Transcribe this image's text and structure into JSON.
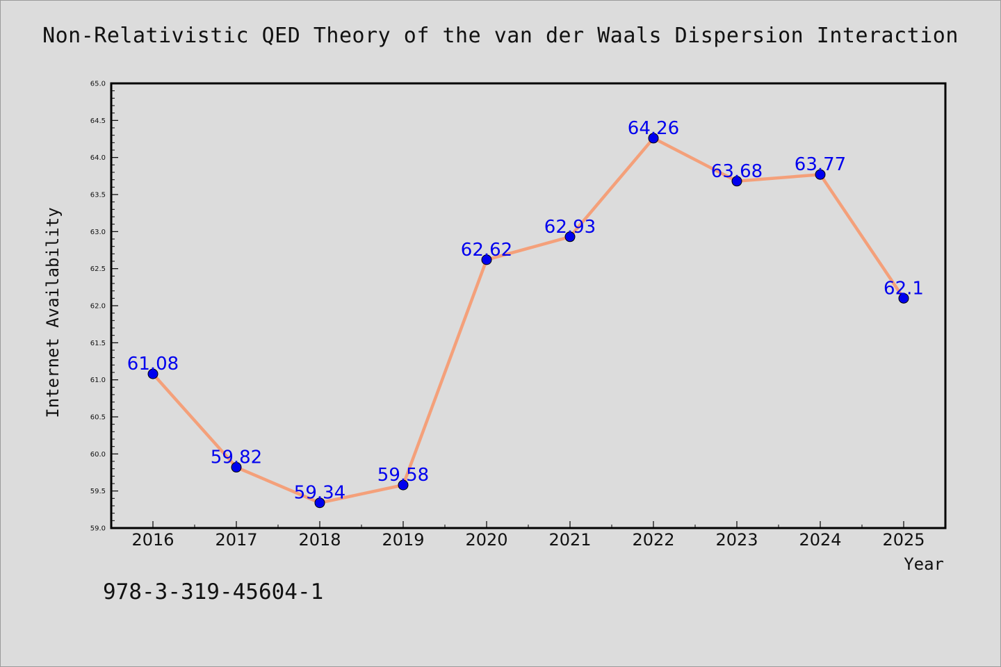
{
  "chart_data": {
    "type": "line",
    "title": "Non-Relativistic QED Theory of the van der Waals Dispersion Interaction",
    "xlabel": "Year",
    "ylabel": "Internet Availability",
    "categories": [
      "2016",
      "2017",
      "2018",
      "2019",
      "2020",
      "2021",
      "2022",
      "2023",
      "2024",
      "2025"
    ],
    "series": [
      {
        "values": [
          61.08,
          59.82,
          59.34,
          59.58,
          62.62,
          62.93,
          64.26,
          63.68,
          63.77,
          62.1
        ],
        "data_labels": [
          "61.08",
          "59.82",
          "59.34",
          "59.58",
          "62.62",
          "62.93",
          "64.26",
          "63.68",
          "63.77",
          "62.1"
        ],
        "line_color": "#f4a07a",
        "marker_color": "#0000ee",
        "label_color": "#0000ee"
      }
    ],
    "ylim": [
      59.0,
      65.0
    ],
    "y_ticks": [
      "59.0",
      "59.5",
      "60.0",
      "60.5",
      "61.0",
      "61.5",
      "62.0",
      "62.5",
      "63.0",
      "63.5",
      "64.0",
      "64.5",
      "65.0"
    ],
    "grid": false,
    "legend": "none",
    "background": "#dcdcdc"
  },
  "footer": {
    "isbn": "978-3-319-45604-1"
  }
}
